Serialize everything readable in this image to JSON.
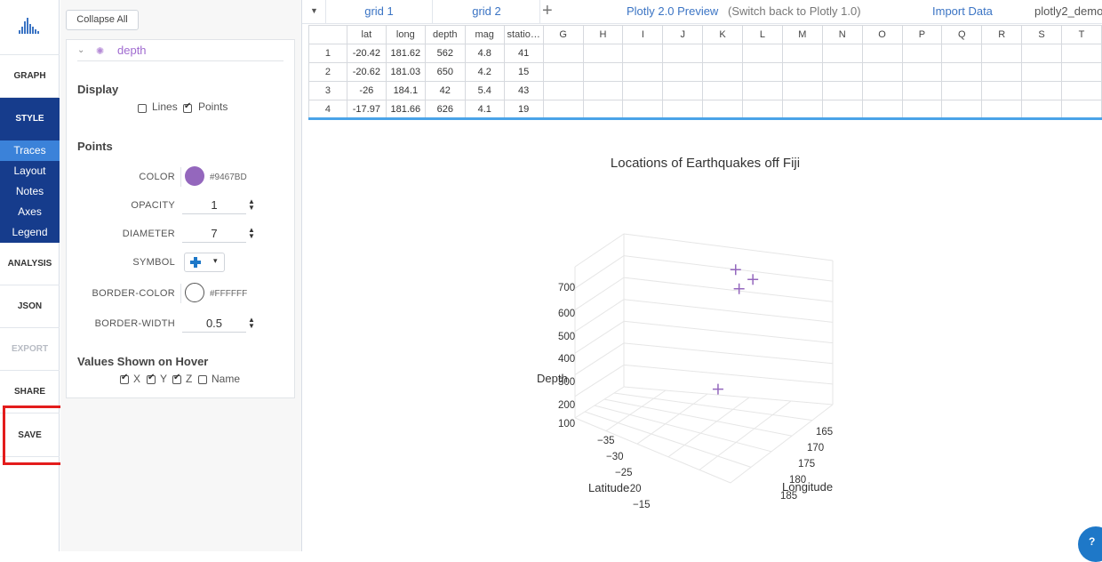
{
  "rail": {
    "items": [
      {
        "label": "GRAPH",
        "state": "normal"
      },
      {
        "label": "STYLE",
        "state": "active"
      },
      {
        "label": "ANALYSIS",
        "state": "normal"
      },
      {
        "label": "JSON",
        "state": "normal"
      },
      {
        "label": "EXPORT",
        "state": "disabled"
      },
      {
        "label": "SHARE",
        "state": "normal"
      },
      {
        "label": "SAVE",
        "state": "highlighted"
      }
    ],
    "style_subitems": [
      {
        "label": "Traces",
        "active": true
      },
      {
        "label": "Layout",
        "active": false
      },
      {
        "label": "Notes",
        "active": false
      },
      {
        "label": "Axes",
        "active": false
      },
      {
        "label": "Legend",
        "active": false
      }
    ]
  },
  "panel": {
    "collapse_all": "Collapse All",
    "trace_name": "depth",
    "display": {
      "title": "Display",
      "lines_label": "Lines",
      "lines_checked": false,
      "points_label": "Points",
      "points_checked": true
    },
    "points": {
      "title": "Points",
      "color_label": "COLOR",
      "color_value": "#9467BD",
      "opacity_label": "OPACITY",
      "opacity_value": "1",
      "diameter_label": "DIAMETER",
      "diameter_value": "7",
      "symbol_label": "SYMBOL",
      "symbol_icon": "cross-icon",
      "border_color_label": "BORDER-COLOR",
      "border_color_value": "#FFFFFF",
      "border_width_label": "BORDER-WIDTH",
      "border_width_value": "0.5"
    },
    "hover": {
      "title": "Values Shown on Hover",
      "options": [
        {
          "label": "X",
          "checked": true
        },
        {
          "label": "Y",
          "checked": true
        },
        {
          "label": "Z",
          "checked": true
        },
        {
          "label": "Name",
          "checked": false
        }
      ]
    }
  },
  "topbar": {
    "tabs": [
      "grid 1",
      "grid 2"
    ],
    "preview_link": "Plotly 2.0 Preview",
    "switch_back": "(Switch back to Plotly 1.0)",
    "import_data": "Import Data",
    "filename": "plotly2_demo"
  },
  "grid": {
    "columns": [
      "lat",
      "long",
      "depth",
      "mag",
      "statio…",
      "G",
      "H",
      "I",
      "J",
      "K",
      "L",
      "M",
      "N",
      "O",
      "P",
      "Q",
      "R",
      "S",
      "T"
    ],
    "rows": [
      {
        "n": "1",
        "cells": [
          "-20.42",
          "181.62",
          "562",
          "4.8",
          "41"
        ]
      },
      {
        "n": "2",
        "cells": [
          "-20.62",
          "181.03",
          "650",
          "4.2",
          "15"
        ]
      },
      {
        "n": "3",
        "cells": [
          "-26",
          "184.1",
          "42",
          "5.4",
          "43"
        ]
      },
      {
        "n": "4",
        "cells": [
          "-17.97",
          "181.66",
          "626",
          "4.1",
          "19"
        ]
      }
    ]
  },
  "chart_data": {
    "type": "scatter",
    "title": "Locations of Earthquakes off Fiji",
    "marker": {
      "symbol": "cross",
      "color": "#9467BD"
    },
    "axes": {
      "z": {
        "label": "Depth",
        "ticks": [
          "700",
          "600",
          "500",
          "400",
          "300",
          "200",
          "100"
        ],
        "range": [
          50,
          700
        ]
      },
      "x": {
        "label": "Latitude",
        "ticks": [
          "−35",
          "−30",
          "−25",
          "−20",
          "−15"
        ],
        "range": [
          -38,
          -10
        ]
      },
      "y": {
        "label": "Longitude",
        "ticks": [
          "165",
          "170",
          "175",
          "180",
          "185"
        ],
        "range": [
          165,
          188
        ]
      }
    },
    "points": [
      {
        "lat": -20.42,
        "long": 181.62,
        "depth": 562
      },
      {
        "lat": -20.62,
        "long": 181.03,
        "depth": 650
      },
      {
        "lat": -26,
        "long": 184.1,
        "depth": 42
      },
      {
        "lat": -17.97,
        "long": 181.66,
        "depth": 626
      }
    ]
  }
}
